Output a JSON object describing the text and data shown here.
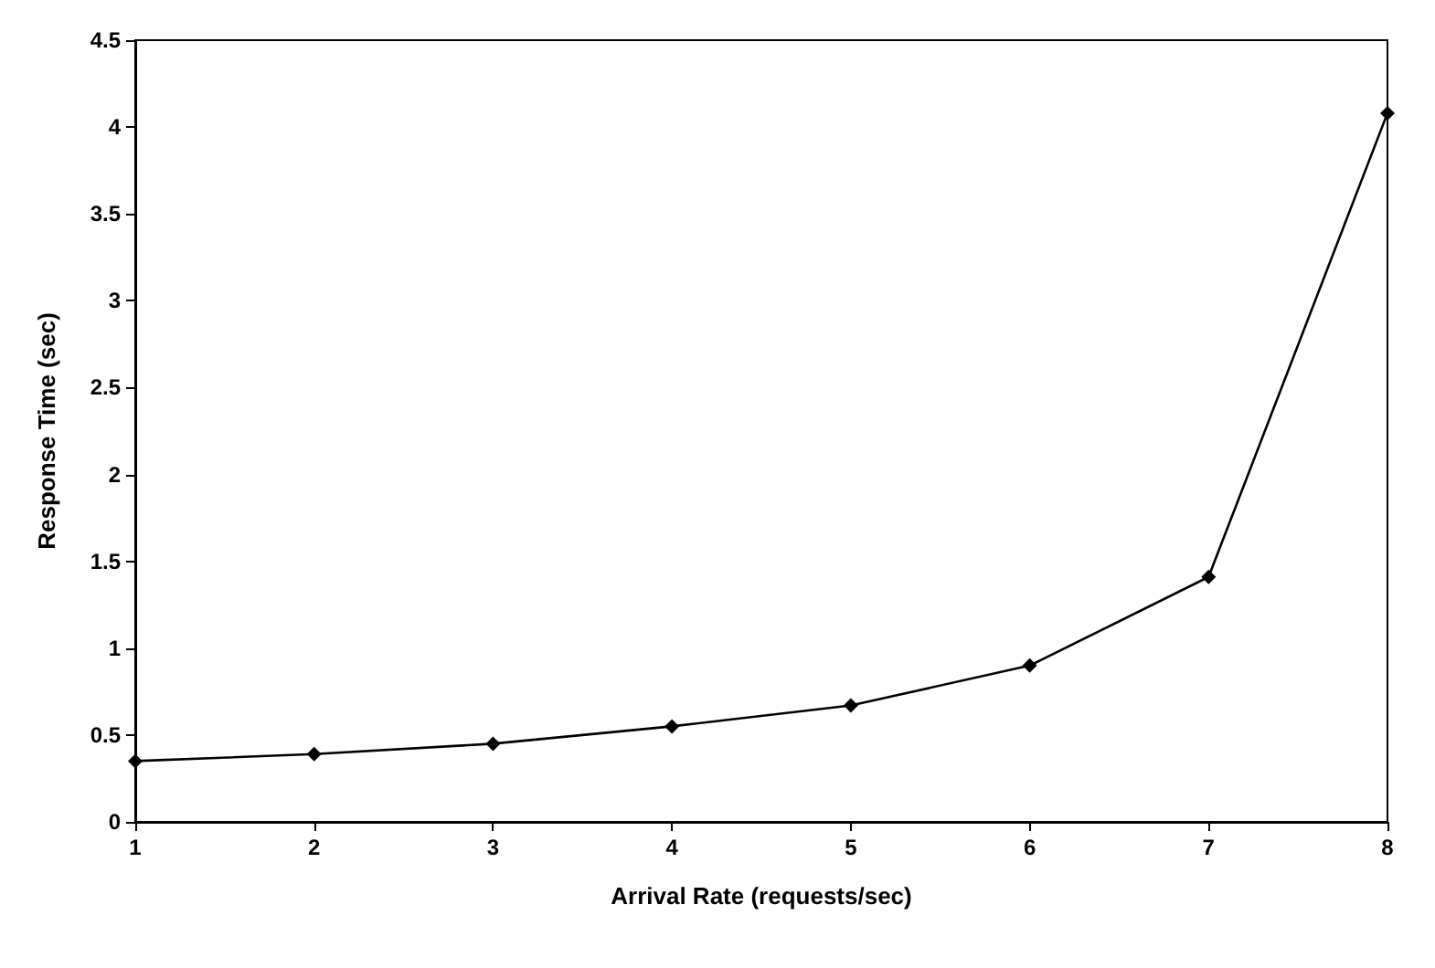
{
  "chart_data": {
    "type": "line",
    "xlabel": "Arrival Rate (requests/sec)",
    "ylabel": "Response Time (sec)",
    "x": [
      1,
      2,
      3,
      4,
      5,
      6,
      7,
      8
    ],
    "series": [
      {
        "color": "#000000",
        "values": [
          0.35,
          0.39,
          0.45,
          0.55,
          0.67,
          0.9,
          1.41,
          4.08
        ]
      }
    ],
    "xlim": [
      1,
      8
    ],
    "xticks": [
      1,
      2,
      3,
      4,
      5,
      6,
      7,
      8
    ],
    "ylim": [
      0,
      4.5
    ],
    "yticks": [
      0,
      0.5,
      1,
      1.5,
      2,
      2.5,
      3,
      3.5,
      4,
      4.5
    ],
    "grid": false,
    "marker": "diamond",
    "line_style": "solid"
  }
}
